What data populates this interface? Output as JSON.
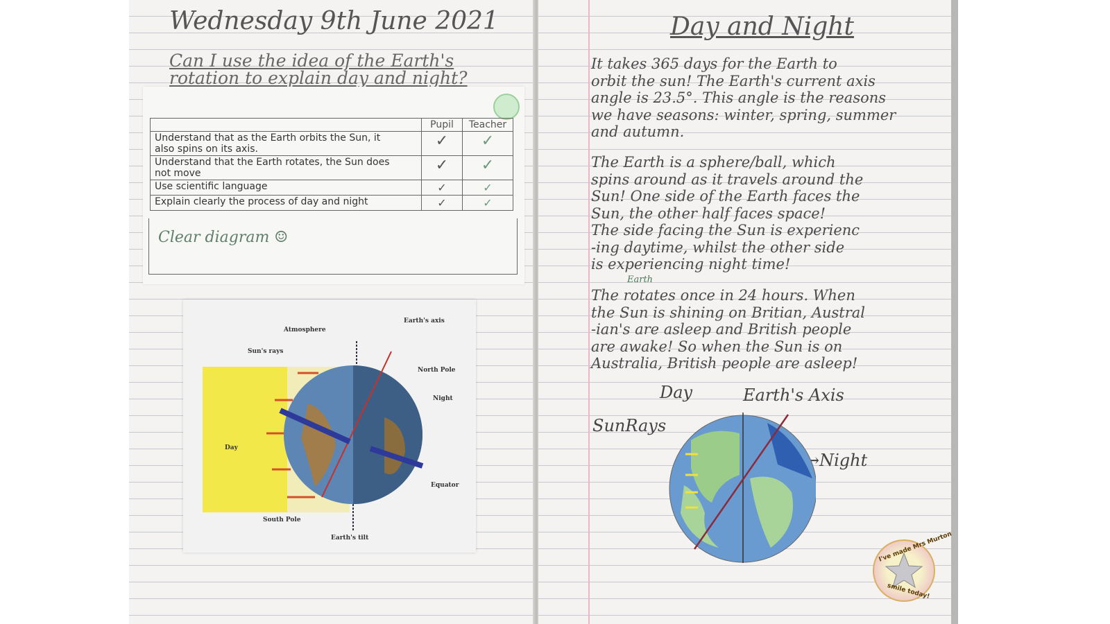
{
  "left_page": {
    "date": "Wednesday 9th June 2021",
    "question_lines": [
      "Can I use the idea of the Earth's",
      "rotation to explain day and night?"
    ],
    "grade_sticker_color": "#cfeccf",
    "table": {
      "headers": [
        "",
        "Pupil",
        "Teacher"
      ],
      "rows": [
        {
          "criterion_lines": [
            "Understand that as the Earth orbits the Sun, it",
            "also spins on its axis."
          ],
          "pupil": "✓",
          "teacher": "✓"
        },
        {
          "criterion_lines": [
            "Understand that the Earth rotates, the Sun does",
            "not move"
          ],
          "pupil": "✓",
          "teacher": "✓"
        },
        {
          "criterion_lines": [
            "Use scientific language"
          ],
          "pupil": "✓",
          "teacher": "✓"
        },
        {
          "criterion_lines": [
            "Explain clearly the process of day and night"
          ],
          "pupil": "✓",
          "teacher": "✓"
        }
      ],
      "teacher_comment": "Clear diagram ☺"
    },
    "diagram_labels": {
      "earths_axis": "Earth's axis",
      "atmosphere": "Atmosphere",
      "suns_rays": "Sun's rays",
      "north_pole": "North Pole",
      "night": "Night",
      "day": "Day",
      "equator": "Equator",
      "south_pole": "South Pole",
      "earths_tilt": "Earth's tilt"
    }
  },
  "right_page": {
    "title": "Day and Night",
    "paragraph1": [
      "It takes 365 days for the Earth to",
      "orbit the sun! The Earth's current axis",
      "angle is 23.5°. This angle is the reasons",
      "we have seasons: winter, spring, summer",
      "and autumn."
    ],
    "paragraph2": [
      "The Earth is a sphere/ball, which",
      "spins around as it travels around the",
      "Sun! One side of the Earth faces the",
      "Sun, the other half faces space!",
      "The side facing the Sun is experienc",
      "-ing daytime, whilst the other side",
      "is experiencing night time!"
    ],
    "insert_word": "Earth",
    "paragraph3": [
      "The rotates once in 24 hours. When",
      "the Sun is shining on Britian, Austral",
      "-ian's are asleep and British people",
      "are awake! So when the Sun is on",
      "Australia, British people are asleep!"
    ],
    "drawing_labels": {
      "day": "Day",
      "earths_axis": "Earth's Axis",
      "sun_rays": "SunRays",
      "night": "→Night"
    },
    "sticker": {
      "top": "I've made Mrs Murton",
      "bottom": "smile today!"
    }
  }
}
